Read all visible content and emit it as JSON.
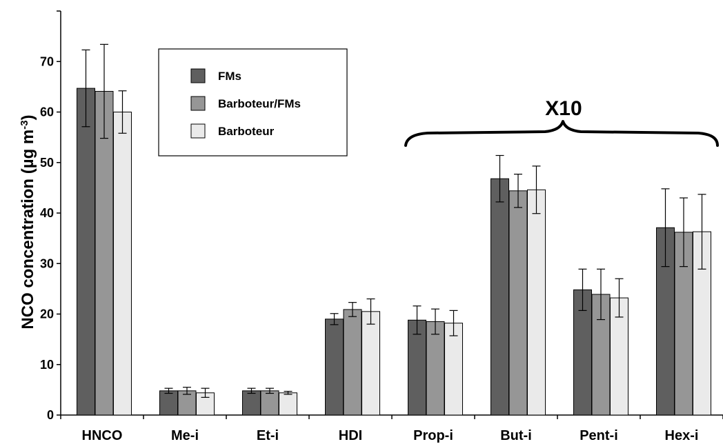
{
  "chart_data": {
    "type": "bar",
    "title": "",
    "xlabel": "",
    "ylabel": "NCO concentration (µg m",
    "ylabel_sup": "-3",
    "ylabel_close": ")",
    "ylim": [
      0,
      80
    ],
    "yticks": [
      0,
      10,
      20,
      30,
      40,
      50,
      60,
      70
    ],
    "grid": false,
    "legend_position": "top-left",
    "categories": [
      "HNCO",
      "Me-i",
      "Et-i",
      "HDI",
      "Prop-i",
      "But-i",
      "Pent-i",
      "Hex-i"
    ],
    "series": [
      {
        "name": "FMs",
        "color": "#5f5f5f",
        "values": [
          64.7,
          4.8,
          4.8,
          19.0,
          18.8,
          46.8,
          24.8,
          37.1
        ],
        "errors": [
          7.6,
          0.5,
          0.5,
          1.1,
          2.8,
          4.6,
          4.1,
          7.7
        ]
      },
      {
        "name": "Barboteur/FMs",
        "color": "#969696",
        "values": [
          64.1,
          4.8,
          4.8,
          20.9,
          18.5,
          44.4,
          23.9,
          36.2
        ],
        "errors": [
          9.3,
          0.7,
          0.5,
          1.4,
          2.5,
          3.3,
          5.0,
          6.8
        ]
      },
      {
        "name": "Barboteur",
        "color": "#eaeaea",
        "values": [
          60.0,
          4.4,
          4.4,
          20.5,
          18.2,
          44.6,
          23.2,
          36.3
        ],
        "errors": [
          4.2,
          0.9,
          0.3,
          2.5,
          2.5,
          4.7,
          3.8,
          7.4
        ]
      }
    ],
    "annotations": [
      {
        "text": "X10",
        "applies_to": [
          "Prop-i",
          "But-i",
          "Pent-i",
          "Hex-i"
        ]
      }
    ]
  }
}
